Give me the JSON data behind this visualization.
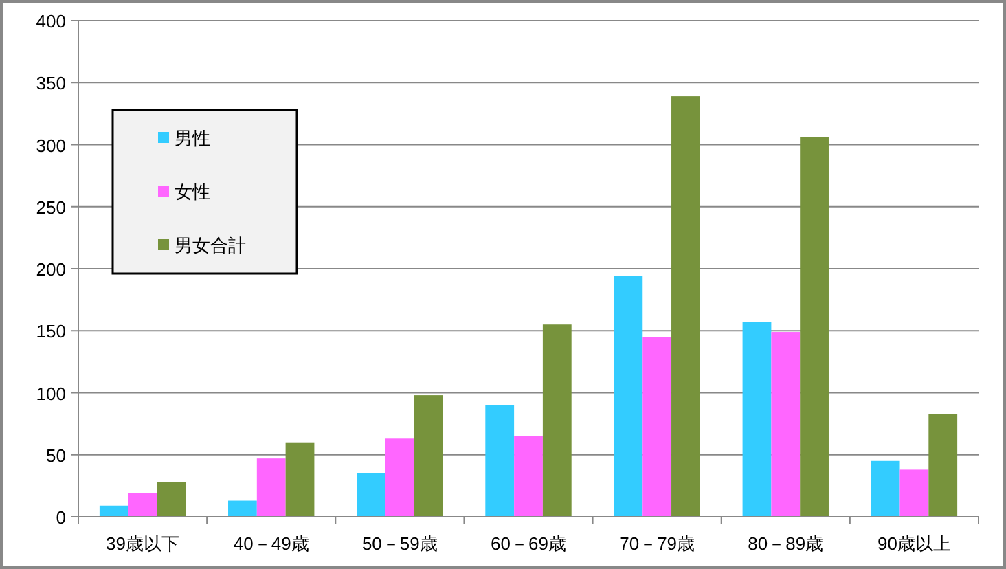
{
  "chart_data": {
    "type": "bar",
    "categories": [
      "39歳以下",
      "40－49歳",
      "50－59歳",
      "60－69歳",
      "70－79歳",
      "80－89歳",
      "90歳以上"
    ],
    "series": [
      {
        "name": "男性",
        "color": "#33ccff",
        "values": [
          9,
          13,
          35,
          90,
          194,
          157,
          45
        ]
      },
      {
        "name": "女性",
        "color": "#ff66ff",
        "values": [
          19,
          47,
          63,
          65,
          145,
          149,
          38
        ]
      },
      {
        "name": "男女合計",
        "color": "#77933c",
        "values": [
          28,
          60,
          98,
          155,
          339,
          306,
          83
        ]
      }
    ],
    "ylim": [
      0,
      400
    ],
    "yticks": [
      0,
      50,
      100,
      150,
      200,
      250,
      300,
      350,
      400
    ],
    "grid": "y",
    "legend": "top left"
  }
}
